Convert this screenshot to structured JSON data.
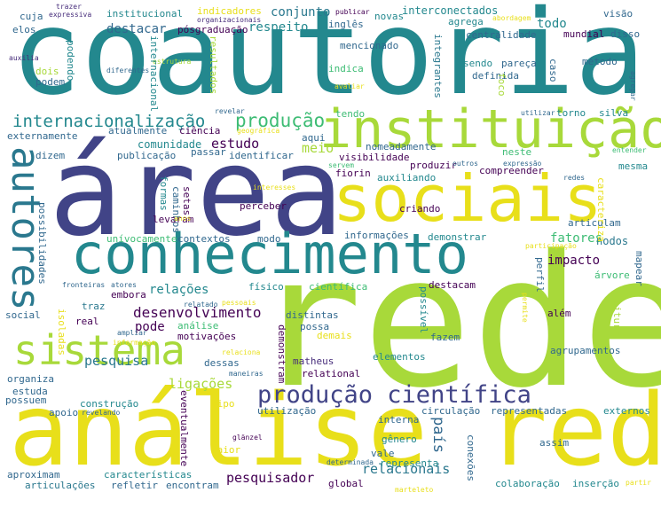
{
  "palette": {
    "yellow": "#e8df1a",
    "lime": "#a8d93a",
    "green": "#5ec962",
    "mint": "#3dbc74",
    "teal": "#23888e",
    "tealdark": "#2a788e",
    "blue": "#31688e",
    "indigo": "#414487",
    "purple": "#472d7b",
    "dark": "#440154"
  },
  "words": [
    {
      "text": "coautoria",
      "color": "teal"
    },
    {
      "text": "área",
      "color": "indigo"
    },
    {
      "text": "rede",
      "color": "lime"
    },
    {
      "text": "análise rede",
      "color": "yellow"
    },
    {
      "text": "instituição",
      "color": "lime"
    },
    {
      "text": "sociais",
      "color": "yellow"
    },
    {
      "text": "conhecimento",
      "color": "teal"
    },
    {
      "text": "sistema",
      "color": "lime"
    },
    {
      "text": "autores",
      "color": "tealdark"
    },
    {
      "text": "produção científica",
      "color": "indigo"
    },
    {
      "text": "internacionalização",
      "color": "teal"
    },
    {
      "text": "produção",
      "color": "mint"
    },
    {
      "text": "desenvolvimento",
      "color": "dark"
    },
    {
      "text": "pesquisador",
      "color": "dark"
    },
    {
      "text": "pesquisa",
      "color": "tealdark"
    },
    {
      "text": "ligações",
      "color": "lime"
    },
    {
      "text": "estudo",
      "color": "dark"
    },
    {
      "text": "comunidade",
      "color": "teal"
    },
    {
      "text": "relacionais",
      "color": "tealdark"
    },
    {
      "text": "país",
      "color": "blue"
    },
    {
      "text": "pode",
      "color": "dark"
    },
    {
      "text": "impacto",
      "color": "dark"
    },
    {
      "text": "fatores",
      "color": "mint"
    },
    {
      "text": "nodos",
      "color": "tealdark"
    },
    {
      "text": "relações",
      "color": "teal"
    },
    {
      "text": "meio",
      "color": "lime"
    },
    {
      "text": "respeito",
      "color": "teal"
    },
    {
      "text": "conjunto",
      "color": "tealdark"
    },
    {
      "text": "destacar",
      "color": "blue"
    },
    {
      "text": "todo",
      "color": "teal"
    },
    {
      "text": "institucional",
      "color": "teal"
    },
    {
      "text": "indicadores",
      "color": "yellow"
    },
    {
      "text": "pósgraduação",
      "color": "dark"
    },
    {
      "text": "inglês",
      "color": "blue"
    },
    {
      "text": "interconectados",
      "color": "teal"
    },
    {
      "text": "novas",
      "color": "teal"
    },
    {
      "text": "agrega",
      "color": "teal"
    },
    {
      "text": "centralidade",
      "color": "blue"
    },
    {
      "text": "mundial",
      "color": "dark"
    },
    {
      "text": "disso",
      "color": "blue"
    },
    {
      "text": "visão",
      "color": "blue"
    },
    {
      "text": "cuja",
      "color": "blue"
    },
    {
      "text": "elos",
      "color": "blue"
    },
    {
      "text": "expressiva",
      "color": "purple"
    },
    {
      "text": "trazer",
      "color": "purple"
    },
    {
      "text": "organizacionais",
      "color": "purple"
    },
    {
      "text": "publicar",
      "color": "dark"
    },
    {
      "text": "abordagem",
      "color": "yellow"
    },
    {
      "text": "mencionado",
      "color": "blue"
    },
    {
      "text": "indica",
      "color": "mint"
    },
    {
      "text": "integrantes",
      "color": "tealdark"
    },
    {
      "text": "definida",
      "color": "blue"
    },
    {
      "text": "sendo",
      "color": "teal"
    },
    {
      "text": "pareça",
      "color": "blue"
    },
    {
      "text": "método",
      "color": "blue"
    },
    {
      "text": "dois",
      "color": "lime"
    },
    {
      "text": "podem",
      "color": "blue"
    },
    {
      "text": "auxilia",
      "color": "purple"
    },
    {
      "text": "diferentes",
      "color": "blue"
    },
    {
      "text": "estrutura",
      "color": "lime"
    },
    {
      "text": "avaliar",
      "color": "yellow"
    },
    {
      "text": "revelar",
      "color": "blue"
    },
    {
      "text": "utilizar",
      "color": "blue"
    },
    {
      "text": "tendo",
      "color": "mint"
    },
    {
      "text": "torno",
      "color": "teal"
    },
    {
      "text": "silva",
      "color": "teal"
    },
    {
      "text": "externamente",
      "color": "blue"
    },
    {
      "text": "atualmente",
      "color": "blue"
    },
    {
      "text": "ciência",
      "color": "dark"
    },
    {
      "text": "aqui",
      "color": "blue"
    },
    {
      "text": "nomeadamente",
      "color": "blue"
    },
    {
      "text": "neste",
      "color": "mint"
    },
    {
      "text": "visibilidade",
      "color": "dark"
    },
    {
      "text": "produzir",
      "color": "dark"
    },
    {
      "text": "compreender",
      "color": "dark"
    },
    {
      "text": "mesma",
      "color": "teal"
    },
    {
      "text": "dizem",
      "color": "blue"
    },
    {
      "text": "publicação",
      "color": "blue"
    },
    {
      "text": "passar",
      "color": "blue"
    },
    {
      "text": "identificar",
      "color": "blue"
    },
    {
      "text": "fiorin",
      "color": "dark"
    },
    {
      "text": "auxiliando",
      "color": "teal"
    },
    {
      "text": "servem",
      "color": "mint"
    },
    {
      "text": "outros",
      "color": "blue"
    },
    {
      "text": "expressão",
      "color": "blue"
    },
    {
      "text": "caminhos",
      "color": "blue"
    },
    {
      "text": "setas",
      "color": "dark"
    },
    {
      "text": "interesses",
      "color": "yellow"
    },
    {
      "text": "perceber",
      "color": "dark"
    },
    {
      "text": "criando",
      "color": "dark"
    },
    {
      "text": "levaram",
      "color": "dark"
    },
    {
      "text": "unívocamente",
      "color": "mint"
    },
    {
      "text": "contextos",
      "color": "blue"
    },
    {
      "text": "modo",
      "color": "blue"
    },
    {
      "text": "informações",
      "color": "blue"
    },
    {
      "text": "demonstrar",
      "color": "teal"
    },
    {
      "text": "articulam",
      "color": "blue"
    },
    {
      "text": "embora",
      "color": "dark"
    },
    {
      "text": "físico",
      "color": "teal"
    },
    {
      "text": "científica",
      "color": "mint"
    },
    {
      "text": "destacam",
      "color": "dark"
    },
    {
      "text": "árvore",
      "color": "mint"
    },
    {
      "text": "mapear",
      "color": "blue"
    },
    {
      "text": "real",
      "color": "dark"
    },
    {
      "text": "traz",
      "color": "tealdark"
    },
    {
      "text": "análise",
      "color": "mint"
    },
    {
      "text": "motivações",
      "color": "dark"
    },
    {
      "text": "distintas",
      "color": "blue"
    },
    {
      "text": "possa",
      "color": "blue"
    },
    {
      "text": "além",
      "color": "dark"
    },
    {
      "text": "dessas",
      "color": "blue"
    },
    {
      "text": "matheus",
      "color": "purple"
    },
    {
      "text": "relational",
      "color": "dark"
    },
    {
      "text": "elementos",
      "color": "teal"
    },
    {
      "text": "agrupamentos",
      "color": "blue"
    },
    {
      "text": "social",
      "color": "blue"
    },
    {
      "text": "fronteiras",
      "color": "blue"
    },
    {
      "text": "atores",
      "color": "blue"
    },
    {
      "text": "relatado",
      "color": "blue"
    },
    {
      "text": "pessoais",
      "color": "yellow"
    },
    {
      "text": "ampliar",
      "color": "blue"
    },
    {
      "text": "informação",
      "color": "yellow"
    },
    {
      "text": "relaciona",
      "color": "yellow"
    },
    {
      "text": "maneiras",
      "color": "blue"
    },
    {
      "text": "organiza",
      "color": "blue"
    },
    {
      "text": "estuda",
      "color": "blue"
    },
    {
      "text": "possuem",
      "color": "blue"
    },
    {
      "text": "apoio",
      "color": "blue"
    },
    {
      "text": "construção",
      "color": "teal"
    },
    {
      "text": "revelando",
      "color": "blue"
    },
    {
      "text": "utilização",
      "color": "blue"
    },
    {
      "text": "circulação",
      "color": "blue"
    },
    {
      "text": "representadas",
      "color": "blue"
    },
    {
      "text": "interna",
      "color": "blue"
    },
    {
      "text": "externos",
      "color": "teal"
    },
    {
      "text": "tipo",
      "color": "yellow"
    },
    {
      "text": "maior",
      "color": "yellow"
    },
    {
      "text": "gênero",
      "color": "teal"
    },
    {
      "text": "vale",
      "color": "blue"
    },
    {
      "text": "representa",
      "color": "teal"
    },
    {
      "text": "conexões",
      "color": "blue"
    },
    {
      "text": "assim",
      "color": "blue"
    },
    {
      "text": "glänzel",
      "color": "dark"
    },
    {
      "text": "determinada",
      "color": "blue"
    },
    {
      "text": "marteleto",
      "color": "yellow"
    },
    {
      "text": "aproximam",
      "color": "blue"
    },
    {
      "text": "características",
      "color": "teal"
    },
    {
      "text": "articulações",
      "color": "tealdark"
    },
    {
      "text": "refletir",
      "color": "blue"
    },
    {
      "text": "encontram",
      "color": "blue"
    },
    {
      "text": "global",
      "color": "dark"
    },
    {
      "text": "colaboração",
      "color": "teal"
    },
    {
      "text": "inserção",
      "color": "teal"
    },
    {
      "text": "partir",
      "color": "yellow"
    },
    {
      "text": "permite",
      "color": "yellow"
    },
    {
      "text": "leitura",
      "color": "lime"
    },
    {
      "text": "perfil",
      "color": "blue"
    },
    {
      "text": "possível",
      "color": "teal"
    },
    {
      "text": "demais",
      "color": "yellow"
    },
    {
      "text": "fazem",
      "color": "blue"
    },
    {
      "text": "demonstram",
      "color": "dark"
    },
    {
      "text": "eventualmente",
      "color": "dark"
    },
    {
      "text": "isoladas",
      "color": "yellow"
    },
    {
      "text": "possibilidades",
      "color": "blue"
    },
    {
      "text": "formas",
      "color": "teal"
    },
    {
      "text": "anos",
      "color": "yellow"
    },
    {
      "text": "caracteriza",
      "color": "yellow"
    },
    {
      "text": "participação",
      "color": "yellow"
    },
    {
      "text": "entender",
      "color": "mint"
    },
    {
      "text": "redes",
      "color": "blue"
    },
    {
      "text": "geográfica",
      "color": "yellow"
    },
    {
      "text": "resultados",
      "color": "lime"
    },
    {
      "text": "internacional",
      "color": "teal"
    },
    {
      "text": "podendo",
      "color": "teal"
    },
    {
      "text": "foco",
      "color": "lime"
    },
    {
      "text": "caso",
      "color": "blue"
    },
    {
      "text": "agregar",
      "color": "blue"
    }
  ]
}
